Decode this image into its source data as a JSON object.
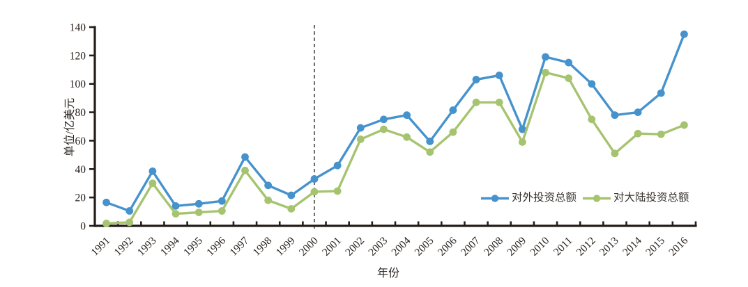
{
  "chart_data": {
    "type": "line",
    "title": "",
    "xlabel": "年份",
    "ylabel": "单位/亿美元",
    "categories": [
      "1991",
      "1992",
      "1993",
      "1994",
      "1995",
      "1996",
      "1997",
      "1998",
      "1999",
      "2000",
      "2001",
      "2002",
      "2003",
      "2004",
      "2005",
      "2006",
      "2007",
      "2008",
      "2009",
      "2010",
      "2011",
      "2012",
      "2013",
      "2014",
      "2015",
      "2016"
    ],
    "series": [
      {
        "name": "对外投资总额",
        "color": "#4592cd",
        "marker": "circle",
        "values": [
          16.5,
          10.5,
          38.5,
          14,
          15.5,
          17.5,
          48.5,
          28.5,
          21.5,
          33,
          42.5,
          69,
          75,
          78,
          59.5,
          81.5,
          103,
          106,
          68,
          119,
          115,
          100,
          78,
          80,
          93.5,
          135
        ]
      },
      {
        "name": "对大陆投资总额",
        "color": "#a6c46f",
        "marker": "circle",
        "values": [
          1.7,
          2.5,
          30,
          8.5,
          9.5,
          10.5,
          39,
          18,
          12,
          24,
          24.5,
          61,
          68,
          62.5,
          52,
          66,
          87,
          87,
          59,
          108,
          104,
          75,
          51,
          65,
          64.5,
          71
        ]
      }
    ],
    "ylim": [
      0,
      140
    ],
    "yticks": [
      0,
      20,
      40,
      60,
      80,
      100,
      120,
      140
    ],
    "grid": false,
    "legend_position": "inside-right",
    "axis_color": "#241d18",
    "tick_label_color": "#241d18",
    "annotations": [
      {
        "type": "vline",
        "category": "2000",
        "line_style": "dashed",
        "color": "#3c3c3c"
      }
    ]
  }
}
